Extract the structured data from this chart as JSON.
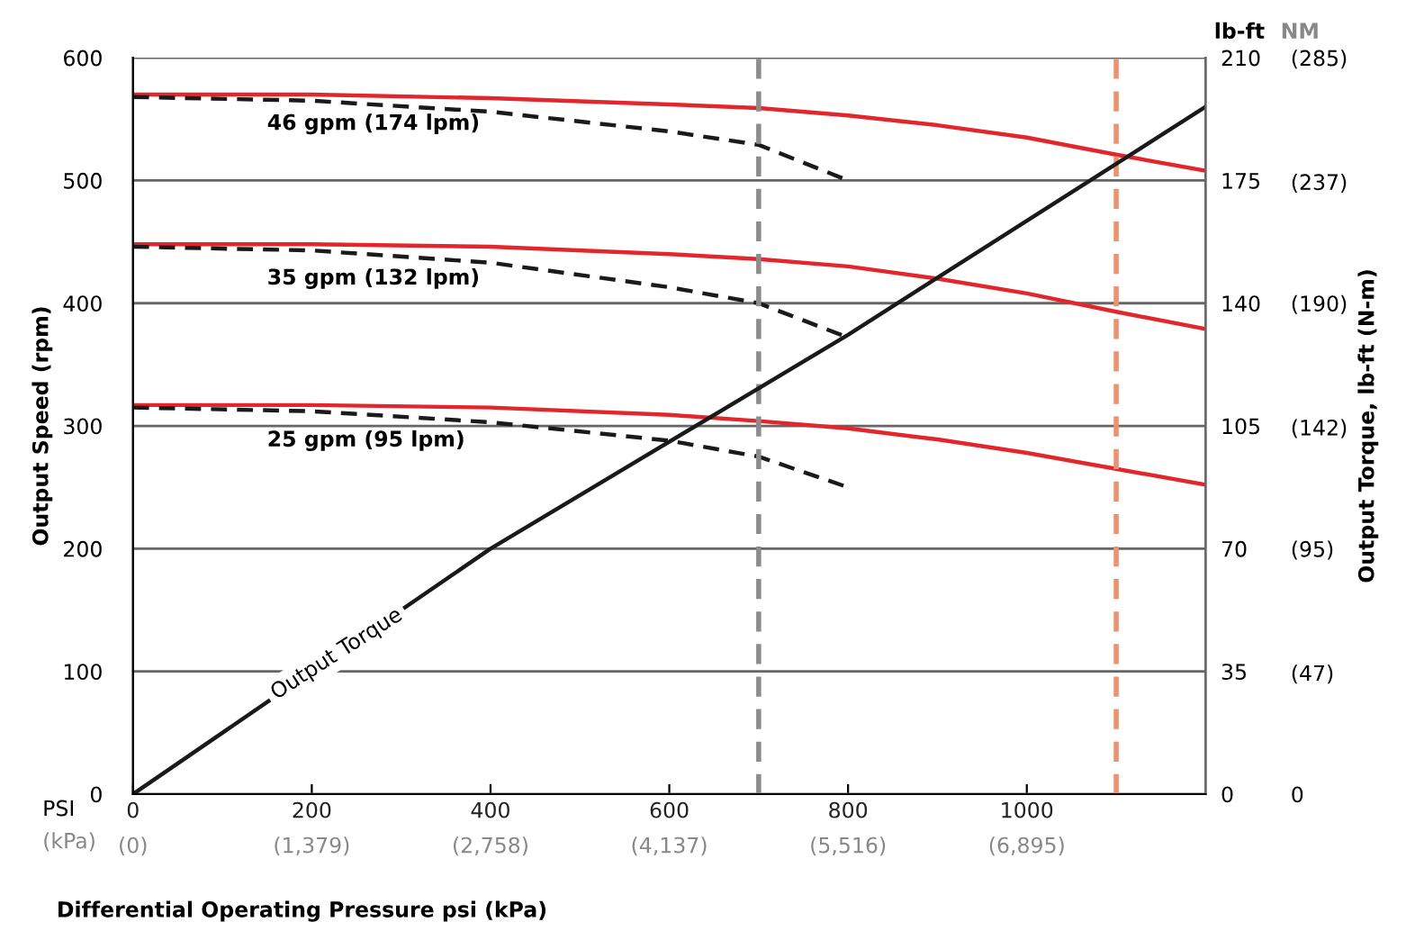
{
  "chart_data": {
    "type": "line",
    "xlabel": "Differential Operating Pressure psi (kPa)",
    "ylabel": "Output Speed (rpm)",
    "y2label": "Output Torque, lb-ft (N-m)",
    "x": [
      0,
      200,
      400,
      600,
      700,
      800,
      900,
      1000,
      1100,
      1200
    ],
    "xlim": [
      0,
      1200
    ],
    "xticks": [
      0,
      200,
      400,
      600,
      800,
      1000
    ],
    "x2lim": [
      0,
      8274
    ],
    "x2ticks": [
      {
        "value": 0,
        "label": "(0)"
      },
      {
        "value": 1379,
        "label": "(1,379)"
      },
      {
        "value": 2758,
        "label": "(2,758)"
      },
      {
        "value": 4137,
        "label": "(4,137)"
      },
      {
        "value": 5516,
        "label": "(5,516)"
      },
      {
        "value": 6895,
        "label": "(6,895)"
      }
    ],
    "ylim": [
      0,
      600
    ],
    "yticks": [
      0,
      100,
      200,
      300,
      400,
      500,
      600
    ],
    "y2lim": [
      0,
      210
    ],
    "y2ticks": [
      0,
      35,
      70,
      105,
      140,
      175,
      210
    ],
    "y3lim": [
      0,
      285
    ],
    "y3ticks": [
      0,
      {
        "value": 47,
        "label": "(47)"
      },
      {
        "value": 95,
        "label": "(95)"
      },
      {
        "value": 142,
        "label": "(142)"
      },
      {
        "value": 190,
        "label": "(190)"
      },
      {
        "value": 237,
        "label": "(237)"
      },
      {
        "value": 285,
        "label": "(285)"
      }
    ],
    "grid": "y",
    "marker": "none",
    "series": [
      {
        "color": "#e3262b",
        "line_style": "solid",
        "values": [
          570,
          570,
          567,
          562,
          559,
          553,
          545,
          535,
          521,
          508
        ]
      },
      {
        "color": "#e3262b",
        "line_style": "solid",
        "values": [
          448,
          448,
          446,
          440,
          436,
          430,
          420,
          408,
          393,
          379
        ]
      },
      {
        "color": "#e3262b",
        "line_style": "solid",
        "values": [
          317,
          317,
          315,
          309,
          304,
          298,
          289,
          278,
          265,
          252
        ]
      },
      {
        "color": "#1a1a1a",
        "line_style": "dashed",
        "x": [
          0,
          200,
          400,
          600,
          700,
          800
        ],
        "values": [
          568,
          565,
          556,
          540,
          529,
          500
        ]
      },
      {
        "color": "#1a1a1a",
        "line_style": "dashed",
        "x": [
          0,
          200,
          400,
          600,
          700,
          800
        ],
        "values": [
          446,
          443,
          433,
          413,
          400,
          372
        ]
      },
      {
        "color": "#1a1a1a",
        "line_style": "dashed",
        "x": [
          0,
          200,
          400,
          600,
          700,
          800
        ],
        "values": [
          315,
          312,
          303,
          288,
          275,
          250
        ]
      },
      {
        "color": "#1a1a1a",
        "line_style": "solid",
        "axis": "y2",
        "x": [
          0,
          400,
          800,
          1200
        ],
        "values": [
          0,
          70,
          131,
          196
        ]
      }
    ],
    "ref_lines": [
      {
        "axis": "x",
        "value": 700,
        "color": "#8c8c8c",
        "line_style": "dashed"
      },
      {
        "axis": "x",
        "value": 1100,
        "color": "#f0906c",
        "line_style": "dashed"
      }
    ],
    "annotations": [
      "46 gpm (174 lpm)",
      "35 gpm (132 lpm)",
      "25 gpm (95 lpm)",
      "Output Torque",
      "lb-ft",
      "NM",
      "PSI",
      "(kPa)"
    ]
  }
}
